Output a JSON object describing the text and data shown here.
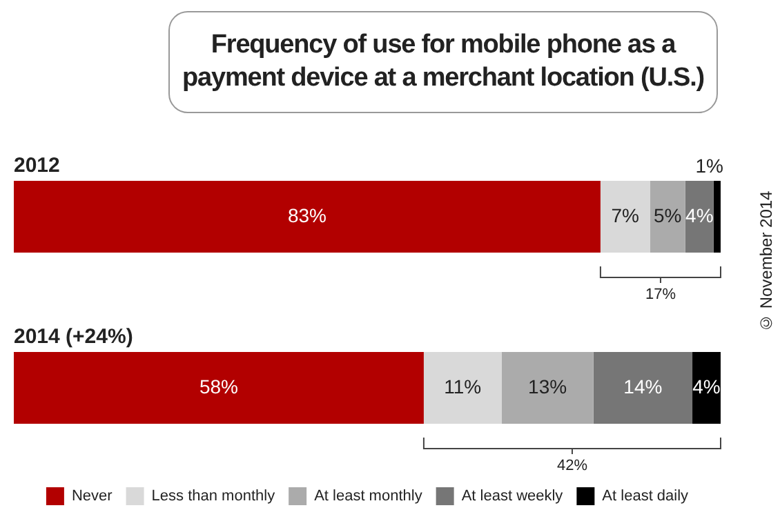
{
  "chart_data": {
    "type": "bar",
    "orientation": "horizontal",
    "stacked": true,
    "title": "Frequency of use for mobile phone as a payment device at a merchant location (U.S.)",
    "categories": [
      "2012",
      "2014 (+24%)"
    ],
    "series": [
      {
        "name": "Never",
        "color": "#b20000",
        "values": [
          83,
          58
        ],
        "value_labels": [
          "83%",
          "58%"
        ]
      },
      {
        "name": "Less than monthly",
        "color": "#d9d9d9",
        "values": [
          7,
          11
        ],
        "value_labels": [
          "7%",
          "11%"
        ]
      },
      {
        "name": "At least monthly",
        "color": "#ababab",
        "values": [
          5,
          13
        ],
        "value_labels": [
          "5%",
          "13%"
        ]
      },
      {
        "name": "At least weekly",
        "color": "#767676",
        "values": [
          4,
          14
        ],
        "value_labels": [
          "4%",
          "14%"
        ]
      },
      {
        "name": "At least daily",
        "color": "#000000",
        "values": [
          1,
          4
        ],
        "value_labels": [
          "1%",
          "4%"
        ]
      }
    ],
    "legend": "bottom",
    "annotations": [
      "17%",
      "42%",
      "© November 2014"
    ]
  }
}
